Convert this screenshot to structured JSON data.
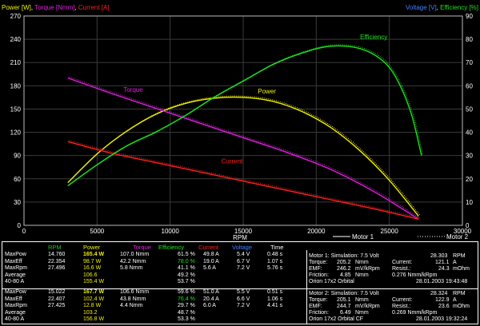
{
  "header": {
    "left_title": {
      "power": "Power [W]",
      "sep1": ", ",
      "torque": "Torque [Nmm]",
      "sep2": ", ",
      "current": "Current [A]"
    },
    "right_title": {
      "voltage": "Voltage [V]",
      "sep": ", ",
      "efficiency": "Efficiency [%]"
    }
  },
  "chart_data": {
    "type": "line",
    "xlabel": "RPM",
    "xlim": [
      0,
      30000
    ],
    "y_left_lim": [
      0,
      270
    ],
    "y_right_lim": [
      0,
      90
    ],
    "x_ticks": [
      "0",
      "5000",
      "10000",
      "15000",
      "20000",
      "25000",
      "30000"
    ],
    "y_left_ticks": [
      "0",
      "30",
      "60",
      "90",
      "120",
      "150",
      "180",
      "210",
      "240",
      "270"
    ],
    "y_right_ticks": [
      "0",
      "10",
      "20",
      "30",
      "40",
      "50",
      "60",
      "70",
      "80",
      "90"
    ],
    "grid": true,
    "legend_position": "bottom-right",
    "legend": [
      "Motor 1",
      "Motor 2"
    ],
    "colors": {
      "power": "#f0f000",
      "torque": "#e020e0",
      "current": "#ff2020",
      "efficiency": "#20e020",
      "voltage": "#2060ff"
    },
    "series": [
      {
        "name": "Power",
        "axis": "left",
        "color": "#f0f000",
        "x": [
          3000,
          5000,
          7000,
          9000,
          11000,
          13000,
          15000,
          17000,
          19000,
          21000,
          23000,
          25000,
          27000
        ],
        "y": [
          55,
          92,
          121,
          143,
          157,
          164,
          165,
          160,
          147,
          126,
          96,
          58,
          12
        ]
      },
      {
        "name": "Torque",
        "axis": "left",
        "color": "#e020e0",
        "x": [
          3000,
          6000,
          9000,
          12000,
          15000,
          18000,
          21000,
          24000,
          27000
        ],
        "y": [
          190,
          170,
          151,
          132,
          113,
          94,
          72,
          43,
          8
        ]
      },
      {
        "name": "Current",
        "axis": "left",
        "color": "#ff2020",
        "x": [
          3000,
          6000,
          9000,
          12000,
          15000,
          18000,
          21000,
          24000,
          27000
        ],
        "y": [
          108,
          93,
          81,
          69,
          57,
          45,
          33,
          21,
          8
        ]
      },
      {
        "name": "Efficiency",
        "axis": "right",
        "color": "#20e020",
        "x": [
          3000,
          5000,
          7000,
          9000,
          11000,
          13000,
          15000,
          17000,
          19000,
          21000,
          23000,
          24500,
          25500,
          26500,
          27200
        ],
        "y": [
          17,
          26,
          34,
          40,
          47,
          55,
          62,
          69,
          74,
          77,
          76,
          71,
          63,
          48,
          30
        ]
      }
    ],
    "annotations": [
      "Efficiency",
      "Power",
      "Torque",
      "Current"
    ]
  },
  "table": {
    "headers": [
      "RPM",
      "Power",
      "Torque",
      "Efficiency",
      "Current",
      "Voltage",
      "Time"
    ],
    "motor1": {
      "rows": [
        {
          "label": "MaxPow",
          "rpm": "14.760",
          "power": "165.4 W",
          "torque": "107.0 Nmm",
          "eff": "61.5 %",
          "current": "49.8 A",
          "volt": "5.4 V",
          "time": "0.48 s"
        },
        {
          "label": "MaxEff",
          "rpm": "22.354",
          "power": "98.7 W",
          "torque": "42.2 Nmm",
          "eff": "78.0 %",
          "current": "19.0 A",
          "volt": "6.7 V",
          "time": "1.07 s"
        },
        {
          "label": "MaxRpm",
          "rpm": "27.496",
          "power": "16.6 W",
          "torque": "5.8 Nmm",
          "eff": "41.1 %",
          "current": "5.6 A",
          "volt": "7.2 V",
          "time": "5.76 s"
        },
        {
          "label": "Average",
          "rpm": "",
          "power": "106.6",
          "torque": "",
          "eff": "49.2 %",
          "current": "",
          "volt": "",
          "time": ""
        },
        {
          "label": "40-80 A",
          "rpm": "",
          "power": "155.4 W",
          "torque": "",
          "eff": "53.7 %",
          "current": "",
          "volt": "",
          "time": ""
        }
      ],
      "info": {
        "title": "Motor 1: Simulation: 7.5 Volt",
        "rpm": "28.303",
        "rpm_unit": "RPM",
        "torque_label": "Torque:",
        "torque_val": "205.2",
        "torque_unit": "Nmm",
        "current_label": "Current:",
        "current_val": "121.1",
        "current_unit": "A",
        "emf_label": "EMF:",
        "emf_val": "246.2",
        "emf_unit": "mV/kRpm",
        "resist_label": "Resist.:",
        "resist_val": "24.3",
        "resist_unit": "mOhm",
        "friction_label": "Friction:",
        "friction_val": "4.85",
        "friction_unit": "Nmm",
        "friction_extra": "0.276 Nmm/kRpm",
        "motor": "Orion 17x2 Orbital",
        "date": "28.01.2003 19:43:48"
      }
    },
    "motor2": {
      "rows": [
        {
          "label": "MaxPow",
          "rpm": "15.022",
          "power": "167.7 W",
          "torque": "106.6 Nmm",
          "eff": "59.6 %",
          "current": "51.0 A",
          "volt": "5.5 V",
          "time": "0.51 s"
        },
        {
          "label": "MaxEff",
          "rpm": "22.407",
          "power": "102.4 W",
          "torque": "43.8 Nmm",
          "eff": "76.4 %",
          "current": "20.4 A",
          "volt": "6.6 V",
          "time": "1.06 s"
        },
        {
          "label": "MaxRpm",
          "rpm": "27.425",
          "power": "12.8 W",
          "torque": "4.4 Nmm",
          "eff": "29.7 %",
          "current": "6.0 A",
          "volt": "7.2 V",
          "time": "4.41 s"
        },
        {
          "label": "Average",
          "rpm": "",
          "power": "103.2",
          "torque": "",
          "eff": "48.7 %",
          "current": "",
          "volt": "",
          "time": ""
        },
        {
          "label": "40-80 A",
          "rpm": "",
          "power": "156.8 W",
          "torque": "",
          "eff": "53.3 %",
          "current": "",
          "volt": "",
          "time": ""
        }
      ],
      "info": {
        "title": "Motor 2: Simulation: 7.5 Volt",
        "rpm": "28.324",
        "rpm_unit": "RPM",
        "torque_label": "Torque:",
        "torque_val": "205.1",
        "torque_unit": "Nmm",
        "current_label": "Current:",
        "current_val": "122.9",
        "current_unit": "A",
        "emf_label": "EMF:",
        "emf_val": "244.7",
        "emf_unit": "mV/kRpm",
        "resist_label": "Resist.:",
        "resist_val": "23.6",
        "resist_unit": "mOhm",
        "friction_label": "Friction:",
        "friction_val": "6.49",
        "friction_unit": "Nmm",
        "friction_extra": "0.269 Nmm/kRpm",
        "motor": "Orion 17x2 Orbital CF",
        "date": "28.01.2003 19:32:24"
      }
    }
  }
}
